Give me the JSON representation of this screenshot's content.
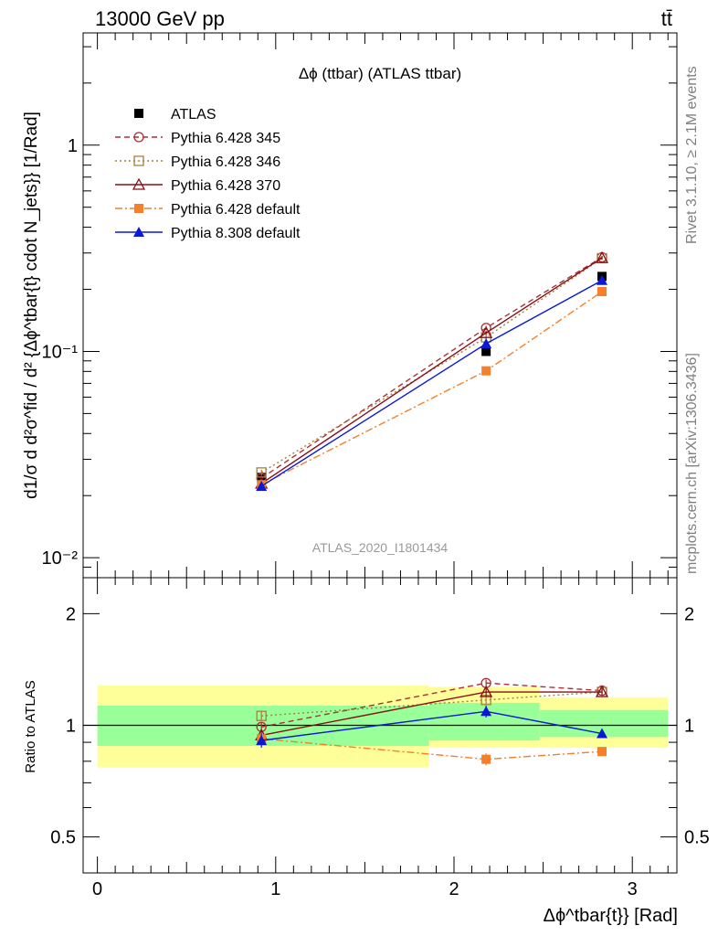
{
  "header": {
    "left": "13000 GeV pp",
    "right": "tt̄",
    "side_top": "Rivet 3.1.10, ≥ 2.1M events",
    "side_bottom": "mcplots.cern.ch [arXiv:1306.3436]"
  },
  "chart_data": [
    {
      "type": "line",
      "title": "Δϕ (ttbar) (ATLAS ttbar)",
      "watermark": "ATLAS_2020_I1801434",
      "ylabel": "d1/σ d d²σ^fid / d² {Δϕ^tbar{t} cdot N_jets}} [1/Rad]",
      "yscale": "log",
      "ylim": [
        0.008,
        3.5
      ],
      "xlim": [
        -0.08,
        3.25
      ],
      "y_ticks": [
        "10⁻²",
        "10⁻¹",
        "1"
      ],
      "legend_position": "top-left",
      "x": [
        0.92,
        2.18,
        2.83
      ],
      "series": [
        {
          "name": "ATLAS",
          "color": "#000000",
          "marker": "square-filled",
          "line": "none",
          "values": [
            0.0245,
            0.1,
            0.231
          ],
          "errors": [
            0.0015,
            0.005,
            0.009
          ]
        },
        {
          "name": "Pythia 6.428 345",
          "color": "#a83236",
          "marker": "circle-open",
          "line": "dashed",
          "values": [
            0.0243,
            0.13,
            0.286
          ],
          "errors": [
            0.0008,
            0.003,
            0.005
          ]
        },
        {
          "name": "Pythia 6.428 346",
          "color": "#a87f3c",
          "marker": "square-open",
          "line": "dotted",
          "values": [
            0.0259,
            0.117,
            0.283
          ],
          "errors": [
            0.0008,
            0.003,
            0.005
          ]
        },
        {
          "name": "Pythia 6.428 370",
          "color": "#8b0e16",
          "marker": "triangle-open",
          "line": "solid",
          "values": [
            0.0229,
            0.123,
            0.284
          ],
          "errors": [
            0.0008,
            0.003,
            0.005
          ]
        },
        {
          "name": "Pythia 6.428 default",
          "color": "#f57f2a",
          "marker": "square-filled",
          "line": "dashdot",
          "values": [
            0.0226,
            0.0805,
            0.195
          ],
          "errors": [
            0.0008,
            0.003,
            0.004
          ]
        },
        {
          "name": "Pythia 8.308 default",
          "color": "#0b18d6",
          "marker": "triangle-filled",
          "line": "solid",
          "values": [
            0.0222,
            0.109,
            0.221
          ],
          "errors": [
            0.0008,
            0.003,
            0.004
          ]
        }
      ]
    },
    {
      "type": "line",
      "ylabel": "Ratio to ATLAS",
      "xlabel": "Δϕ^tbar{t}} [Rad]",
      "yscale": "log",
      "ylim": [
        0.4,
        2.5
      ],
      "xlim": [
        -0.08,
        3.25
      ],
      "y_ticks": [
        "0.5",
        "1",
        "2"
      ],
      "x_ticks": [
        "0",
        "1",
        "2",
        "3"
      ],
      "reference_line": 1,
      "bands": [
        {
          "x_range": [
            0.0,
            1.86
          ],
          "yellow": [
            0.77,
            1.28
          ],
          "green": [
            0.88,
            1.13
          ]
        },
        {
          "x_range": [
            1.86,
            2.48
          ],
          "yellow": [
            0.87,
            1.27
          ],
          "green": [
            0.91,
            1.15
          ]
        },
        {
          "x_range": [
            2.48,
            3.2
          ],
          "yellow": [
            0.87,
            1.19
          ],
          "green": [
            0.93,
            1.1
          ]
        }
      ],
      "x": [
        0.92,
        2.18,
        2.83
      ],
      "series": [
        {
          "name": "Pythia 6.428 345",
          "color": "#a83236",
          "marker": "circle-open",
          "line": "dashed",
          "values": [
            0.99,
            1.3,
            1.24
          ],
          "errors": [
            0.03,
            0.03,
            0.02
          ]
        },
        {
          "name": "Pythia 6.428 346",
          "color": "#a87f3c",
          "marker": "square-open",
          "line": "dotted",
          "values": [
            1.06,
            1.17,
            1.23
          ],
          "errors": [
            0.03,
            0.03,
            0.02
          ]
        },
        {
          "name": "Pythia 6.428 370",
          "color": "#8b0e16",
          "marker": "triangle-open",
          "line": "solid",
          "values": [
            0.94,
            1.23,
            1.23
          ],
          "errors": [
            0.03,
            0.03,
            0.02
          ]
        },
        {
          "name": "Pythia 6.428 default",
          "color": "#f57f2a",
          "marker": "square-filled",
          "line": "dashdot",
          "values": [
            0.92,
            0.81,
            0.85
          ],
          "errors": [
            0.03,
            0.03,
            0.02
          ]
        },
        {
          "name": "Pythia 8.308 default",
          "color": "#0b18d6",
          "marker": "triangle-filled",
          "line": "solid",
          "values": [
            0.91,
            1.09,
            0.95
          ],
          "errors": [
            0.04,
            0.04,
            0.02
          ]
        }
      ]
    }
  ]
}
